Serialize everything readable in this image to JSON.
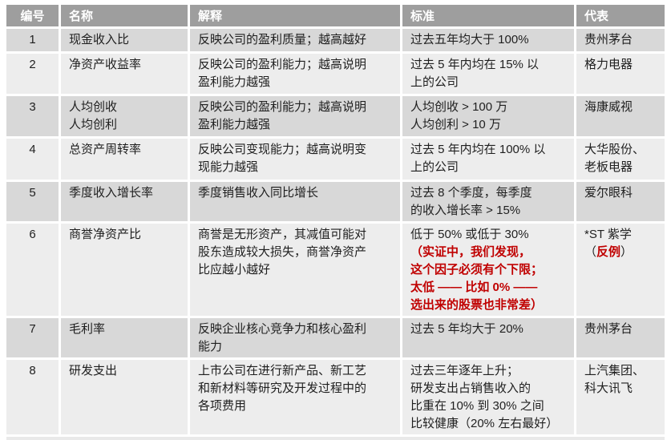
{
  "colors": {
    "header_bg": "#9e9e9e",
    "header_text": "#ffffff",
    "row_odd_bg": "#d8d8d8",
    "row_even_bg": "#ededed",
    "body_text": "#1f1f1f",
    "highlight_red": "#c00000",
    "page_bg": "#ffffff"
  },
  "table": {
    "headers": [
      "编号",
      "名称",
      "解释",
      "标准",
      "代表"
    ],
    "rows": [
      {
        "no": "1",
        "name": [
          "现金收入比"
        ],
        "explanation": [
          "反映公司的盈利质量；越高越好"
        ],
        "standard": [
          "过去五年均大于 100%"
        ],
        "representative": [
          "贵州茅台"
        ]
      },
      {
        "no": "2",
        "name": [
          "净资产收益率"
        ],
        "explanation": [
          "反映公司的盈利能力；越高说明",
          "盈利能力越强"
        ],
        "standard": [
          "过去 5 年内均在 15% 以",
          "上的公司"
        ],
        "representative": [
          "格力电器"
        ]
      },
      {
        "no": "3",
        "name": [
          "人均创收",
          "人均创利"
        ],
        "explanation": [
          "反映公司的盈利能力；越高说明",
          "盈利能力越强"
        ],
        "standard": [
          "人均创收 > 100 万",
          "人均创利 > 10 万"
        ],
        "representative": [
          "海康威视"
        ]
      },
      {
        "no": "4",
        "name": [
          "总资产周转率"
        ],
        "explanation": [
          "反映公司变现能力；越高说明变",
          "现能力越强"
        ],
        "standard": [
          "过去 5 年内均在 100% 以",
          "上的公司"
        ],
        "representative": [
          "大华股份、",
          "老板电器"
        ]
      },
      {
        "no": "5",
        "name": [
          "季度收入增长率"
        ],
        "explanation": [
          "季度销售收入同比增长"
        ],
        "standard": [
          "过去 8 个季度，每季度",
          "的收入增长率 > 15%"
        ],
        "representative": [
          "爱尔眼科"
        ]
      },
      {
        "no": "6",
        "name": [
          "商誉净资产比"
        ],
        "explanation": [
          "商誉是无形资产，其减值可能对",
          "股东造成较大损失，商誉净资产",
          "比应越小越好"
        ],
        "standard": [
          "低于 50% 或低于 30%",
          {
            "text": "（实证中，我们发现，",
            "red": true
          },
          {
            "text": "这个因子必须有个下限；",
            "red": true
          },
          {
            "text": "太低 —— 比如 0% ——",
            "red": true
          },
          {
            "text": "选出来的股票也非常差）",
            "red": true
          }
        ],
        "representative": [
          "*ST 紫学",
          {
            "runs": [
              {
                "text": "（"
              },
              {
                "text": "反例",
                "red": true
              },
              {
                "text": "）"
              }
            ]
          }
        ]
      },
      {
        "no": "7",
        "name": [
          "毛利率"
        ],
        "explanation": [
          "反映企业核心竞争力和核心盈利",
          "能力"
        ],
        "standard": [
          "过去 5 年均大于 20%"
        ],
        "representative": [
          "贵州茅台"
        ]
      },
      {
        "no": "8",
        "name": [
          "研发支出"
        ],
        "explanation": [
          "上市公司在进行新产品、新工艺",
          "和新材料等研究及开发过程中的",
          "各项费用"
        ],
        "standard": [
          "过去三年逐年上升；",
          "研发支出占销售收入的",
          "比重在 10% 到 30% 之间",
          "比较健康（20% 左右最好）"
        ],
        "representative": [
          "上汽集团、",
          "科大讯飞"
        ]
      }
    ]
  }
}
